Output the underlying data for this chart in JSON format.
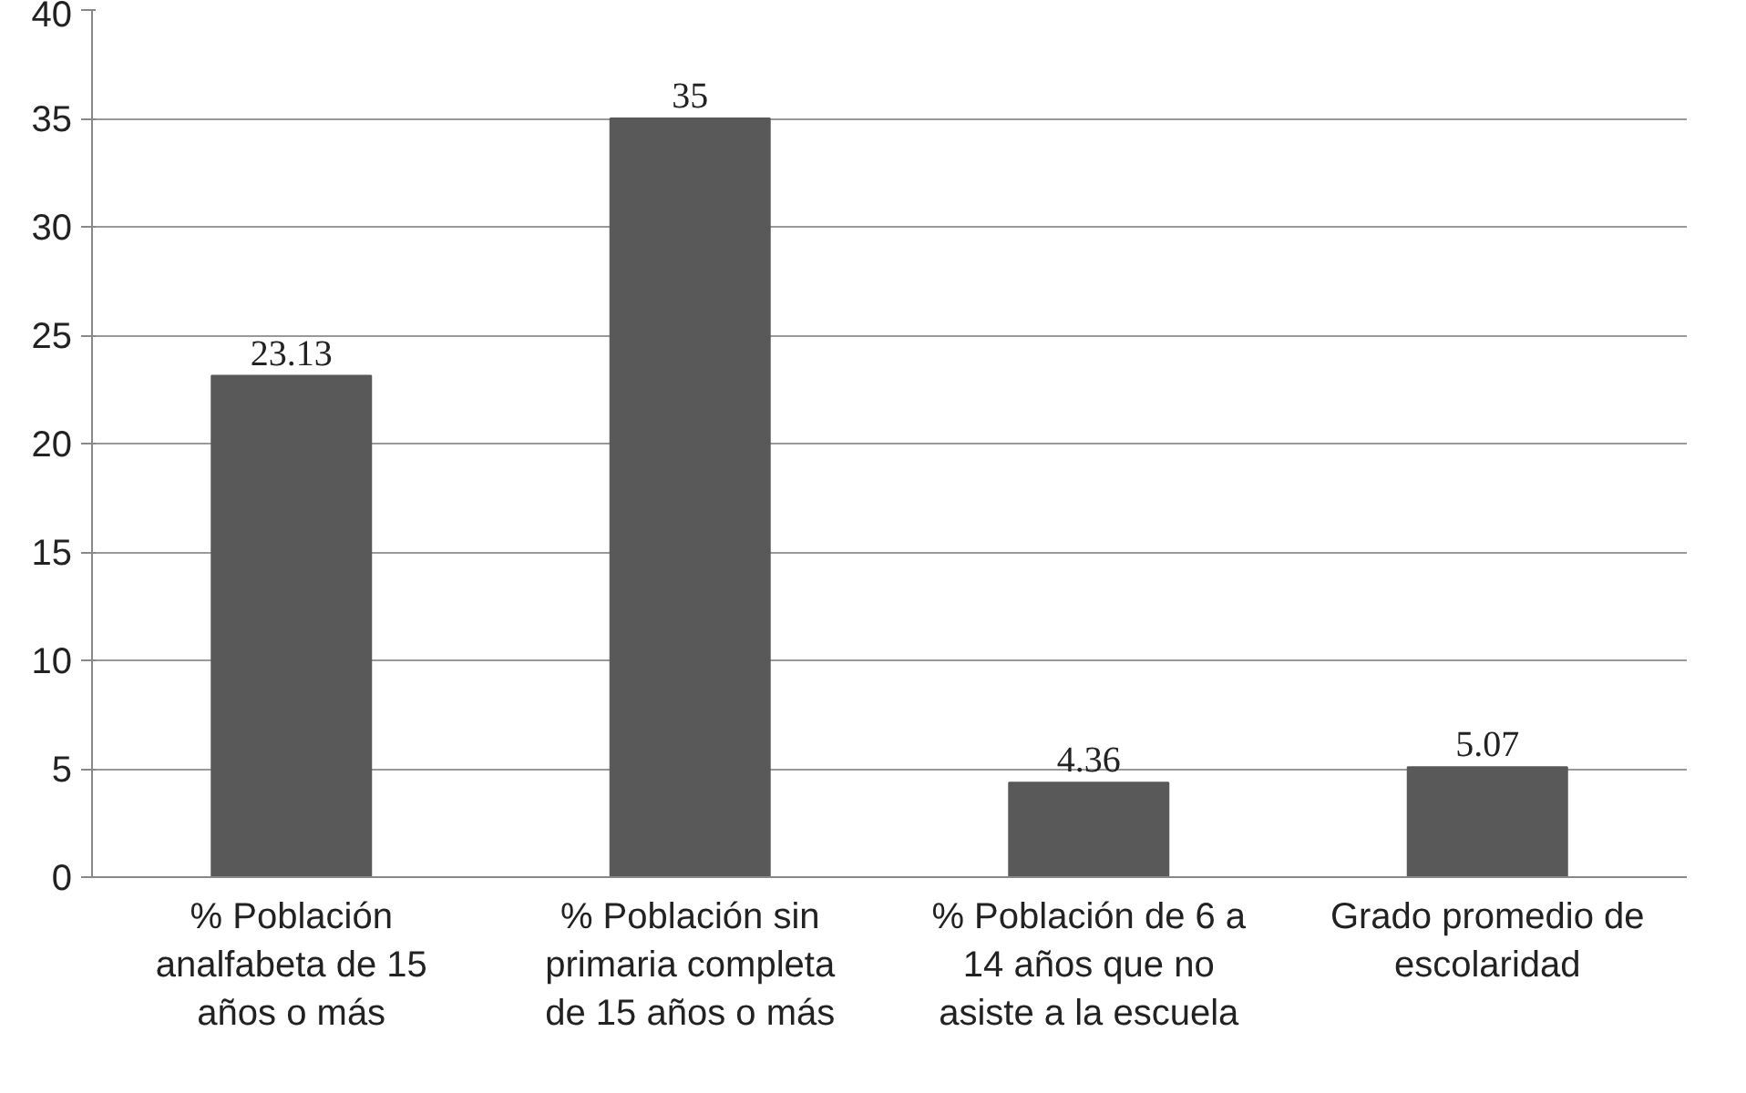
{
  "chart_data": {
    "type": "bar",
    "categories": [
      "% Población analfabeta de 15 años o más",
      "% Población sin primaria completa de 15 años o más",
      "% Población de 6 a 14 años que no asiste a la escuela",
      "Grado promedio de escolaridad"
    ],
    "values": [
      23.13,
      35,
      4.36,
      5.07
    ],
    "color": "#595959",
    "ylim": [
      0,
      40
    ],
    "yticks": [
      0,
      5,
      10,
      15,
      20,
      25,
      30,
      35,
      40
    ],
    "grid": "y",
    "data_labels": true
  }
}
